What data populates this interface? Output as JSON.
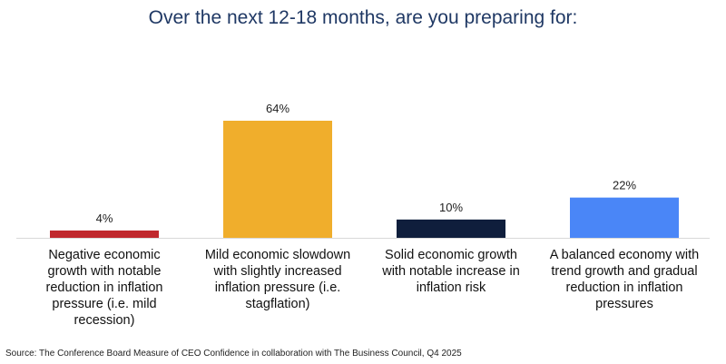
{
  "chart_data": {
    "type": "bar",
    "title": "Over the next 12-18 months, are you preparing for:",
    "categories": [
      [
        "Negative economic",
        "growth with notable",
        "reduction in inflation",
        "pressure (i.e. mild",
        "recession)"
      ],
      [
        "Mild economic slowdown",
        "with slightly increased",
        "inflation pressure (i.e.",
        "stagflation)"
      ],
      [
        "Solid economic growth",
        "with notable increase in",
        "inflation risk"
      ],
      [
        "A balanced economy with",
        "trend growth and gradual",
        "reduction in inflation",
        "pressures"
      ]
    ],
    "values": [
      4,
      64,
      10,
      22
    ],
    "value_labels": [
      "4%",
      "64%",
      "10%",
      "22%"
    ],
    "colors": [
      "#c0282d",
      "#f0ae2c",
      "#0f1e3c",
      "#4a86f7"
    ],
    "ylim": [
      0,
      64
    ],
    "grid": false,
    "legend": "none",
    "xlabel": "",
    "ylabel": ""
  },
  "source": "Source: The Conference Board Measure of CEO Confidence in collaboration with The Business Council, Q4 2025"
}
